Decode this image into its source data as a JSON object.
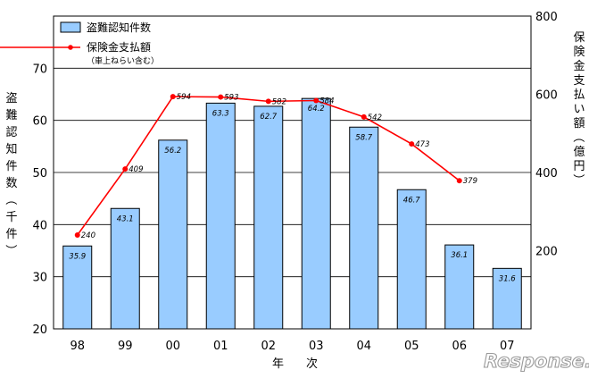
{
  "chart_data": {
    "type": "bar",
    "categories": [
      "98",
      "99",
      "00",
      "01",
      "02",
      "03",
      "04",
      "05",
      "06",
      "07"
    ],
    "xlabel": "年　次",
    "ylabel_left": "盗難認知件数（千件）",
    "ylabel_right": "保険金支払い額（億円）",
    "ylim_left": [
      20,
      80
    ],
    "yticks_left": [
      "20",
      "30",
      "40",
      "50",
      "60",
      "70"
    ],
    "ylim_right": [
      0,
      800
    ],
    "yticks_right": [
      "200",
      "400",
      "600",
      "800"
    ],
    "grid": "horizontal",
    "legend_position": "top-left",
    "legend_note": "（車上ねらい含む）",
    "series": [
      {
        "name": "盗難認知件数",
        "type": "bar",
        "axis": "left",
        "color": "#99ccff",
        "values": [
          35.9,
          43.1,
          56.2,
          63.3,
          62.7,
          64.2,
          58.7,
          46.7,
          36.1,
          31.6
        ],
        "labels": [
          "35.9",
          "43.1",
          "56.2",
          "63.3",
          "62.7",
          "64.2",
          "58.7",
          "46.7",
          "36.1",
          "31.6"
        ]
      },
      {
        "name": "保険金支払額",
        "type": "line",
        "axis": "right",
        "color": "#ff0000",
        "values": [
          240,
          409,
          594,
          593,
          582,
          584,
          542,
          473,
          379,
          null
        ],
        "labels": [
          "240",
          "409",
          "594",
          "593",
          "582",
          "584",
          "542",
          "473",
          "379",
          ""
        ]
      }
    ]
  },
  "watermark": "Response."
}
